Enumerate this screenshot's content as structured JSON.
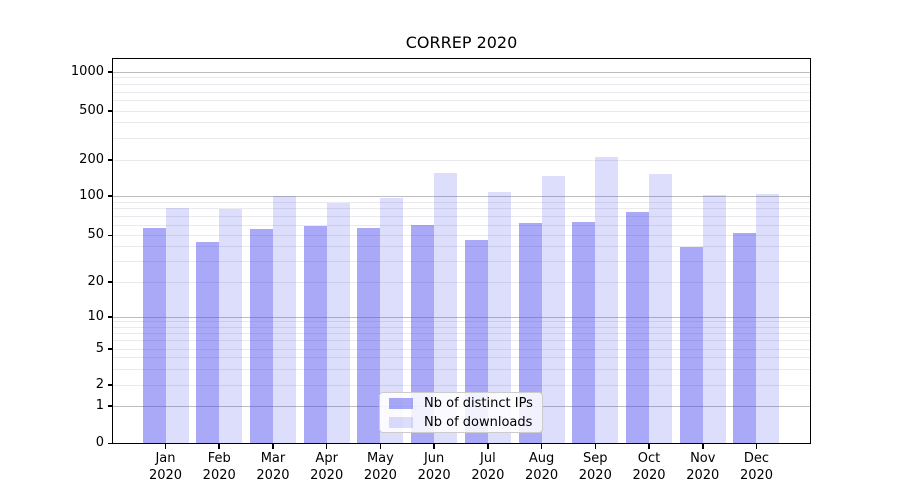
{
  "chart_data": {
    "type": "bar",
    "title": "CORREP 2020",
    "categories": [
      "Jan",
      "Feb",
      "Mar",
      "Apr",
      "May",
      "Jun",
      "Jul",
      "Aug",
      "Sep",
      "Oct",
      "Nov",
      "Dec"
    ],
    "xtick_year": "2020",
    "series": [
      {
        "name": "Nb of distinct IPs",
        "color": "rgba(64,64,240,0.45)",
        "values": [
          57,
          44,
          56,
          59,
          57,
          60,
          46,
          62,
          63,
          76,
          40,
          52
        ]
      },
      {
        "name": "Nb of downloads",
        "color": "rgba(64,64,240,0.18)",
        "values": [
          81,
          79,
          100,
          88,
          96,
          155,
          108,
          146,
          210,
          152,
          101,
          104
        ]
      }
    ],
    "yticks": [
      0,
      1,
      2,
      5,
      10,
      20,
      50,
      100,
      200,
      500,
      1000
    ],
    "ylim": [
      0,
      1260
    ],
    "yscale": "symlog (logarithmic above 1, linear 0-1)",
    "xlabel": "",
    "ylabel": "",
    "grid": "horizontal, major gridlines at powers of 10, faint minor gridlines",
    "legend_position": "lower center"
  }
}
